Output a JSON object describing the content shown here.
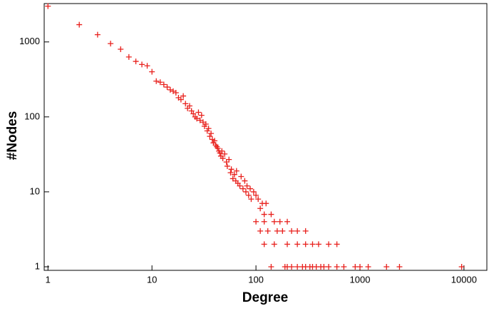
{
  "chart_data": {
    "type": "scatter",
    "xlabel": "Degree",
    "ylabel": "#Nodes",
    "xscale": "log",
    "yscale": "log",
    "color": "#e8201c",
    "marker": "+",
    "xlim": [
      0.92,
      16600
    ],
    "ylim": [
      0.896,
      3250
    ],
    "xticks": [
      1,
      10,
      100,
      1000,
      10000
    ],
    "yticks": [
      1,
      10,
      100,
      1000
    ],
    "x": [
      1,
      2,
      3,
      4,
      5,
      6,
      7,
      8,
      9,
      10,
      11,
      12,
      13,
      14,
      15,
      16,
      17,
      18,
      19,
      20,
      21,
      22,
      23,
      24,
      25,
      26,
      27,
      28,
      29,
      30,
      31,
      32,
      33,
      34,
      35,
      36,
      37,
      38,
      39,
      40,
      41,
      42,
      43,
      44,
      45,
      46,
      47,
      48,
      50,
      52,
      53,
      55,
      57,
      58,
      60,
      62,
      64,
      65,
      67,
      70,
      72,
      75,
      78,
      80,
      82,
      85,
      88,
      90,
      95,
      100,
      105,
      110,
      115,
      120,
      125,
      100,
      110,
      120,
      130,
      140,
      150,
      160,
      170,
      180,
      200,
      220,
      250,
      300,
      120,
      150,
      200,
      250,
      300,
      350,
      400,
      500,
      600,
      140,
      190,
      200,
      220,
      250,
      280,
      300,
      330,
      350,
      380,
      420,
      450,
      500,
      600,
      700,
      900,
      1000,
      1200,
      1800,
      2400,
      9500
    ],
    "values": [
      3000,
      1700,
      1250,
      950,
      800,
      630,
      550,
      500,
      480,
      400,
      300,
      290,
      270,
      250,
      230,
      220,
      210,
      180,
      170,
      190,
      150,
      130,
      140,
      120,
      110,
      100,
      95,
      115,
      90,
      105,
      85,
      75,
      80,
      65,
      70,
      55,
      60,
      50,
      45,
      48,
      42,
      40,
      38,
      35,
      33,
      30,
      35,
      28,
      32,
      25,
      22,
      27,
      18,
      20,
      15,
      17,
      14,
      19,
      13,
      12,
      16,
      11,
      14,
      10,
      12,
      9,
      11,
      8,
      10,
      9,
      8,
      6,
      7,
      5,
      7,
      4,
      3,
      4,
      3,
      5,
      4,
      3,
      4,
      3,
      4,
      3,
      3,
      3,
      2,
      2,
      2,
      2,
      2,
      2,
      2,
      2,
      2,
      1,
      1,
      1,
      1,
      1,
      1,
      1,
      1,
      1,
      1,
      1,
      1,
      1,
      1,
      1,
      1,
      1,
      1,
      1,
      1,
      1
    ]
  }
}
